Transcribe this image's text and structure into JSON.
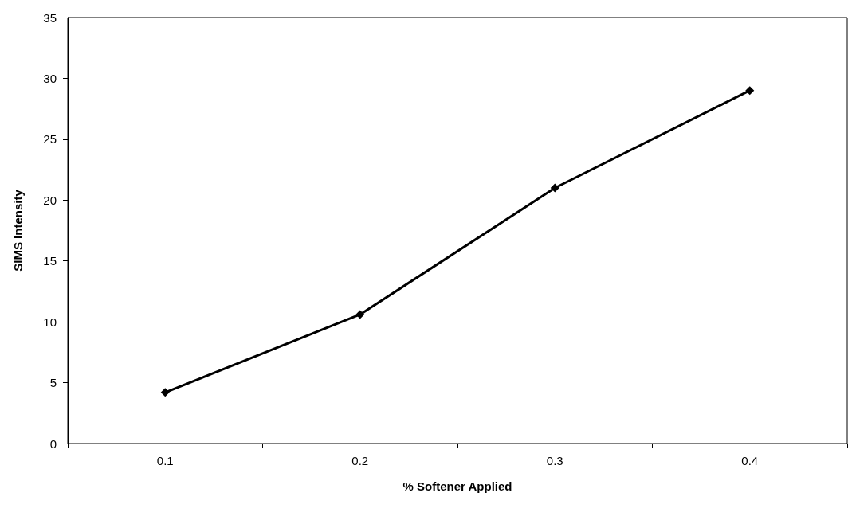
{
  "chart_data": {
    "type": "line",
    "xlabel": "% Softener Applied",
    "ylabel": "SIMS Intensity",
    "categories": [
      "0.1",
      "0.2",
      "0.3",
      "0.4"
    ],
    "series": [
      {
        "color": "#000000",
        "values": [
          4.2,
          10.6,
          21,
          29
        ]
      }
    ],
    "ylim": [
      0,
      35
    ],
    "yticks": [
      0,
      5,
      10,
      15,
      20,
      25,
      30,
      35
    ],
    "grid": false,
    "marker": "diamond",
    "line_style": "solid"
  }
}
